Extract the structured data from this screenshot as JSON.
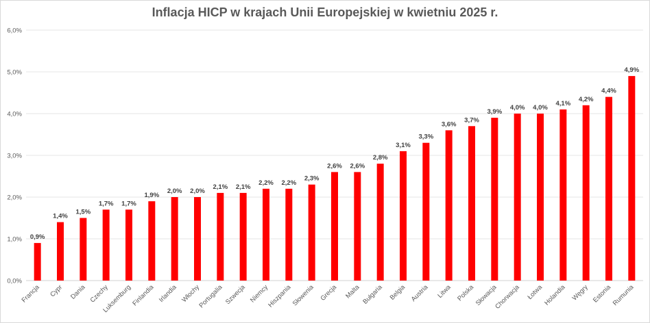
{
  "chart_data": {
    "type": "bar",
    "title": "Inflacja HICP w krajach Unii Europejskiej w kwietniu 2025 r.",
    "xlabel": "",
    "ylabel": "",
    "ylim": [
      0,
      6
    ],
    "y_ticks": [
      "0,0%",
      "1,0%",
      "2,0%",
      "3,0%",
      "4,0%",
      "5,0%",
      "6,0%"
    ],
    "y_tick_values": [
      0,
      1,
      2,
      3,
      4,
      5,
      6
    ],
    "grid": true,
    "legend": "none",
    "bar_color": "#ff0000",
    "categories": [
      "Francja",
      "Cypr",
      "Dania",
      "Czechy",
      "Luksemburg",
      "Finlandia",
      "Irlandia",
      "Włochy",
      "Portugalia",
      "Szwecja",
      "Niemcy",
      "Hiszpania",
      "Słowenia",
      "Grecja",
      "Malta",
      "Bułgaria",
      "Belgia",
      "Austria",
      "Litwa",
      "Polska",
      "Słowacja",
      "Chorwacja",
      "Łotwa",
      "Holandia",
      "Węgry",
      "Estonia",
      "Rumunia"
    ],
    "values": [
      0.9,
      1.4,
      1.5,
      1.7,
      1.7,
      1.9,
      2.0,
      2.0,
      2.1,
      2.1,
      2.2,
      2.2,
      2.3,
      2.6,
      2.6,
      2.8,
      3.1,
      3.3,
      3.6,
      3.7,
      3.9,
      4.0,
      4.0,
      4.1,
      4.2,
      4.4,
      4.9
    ],
    "data_labels": [
      "0,9%",
      "1,4%",
      "1,5%",
      "1,7%",
      "1,7%",
      "1,9%",
      "2,0%",
      "2,0%",
      "2,1%",
      "2,1%",
      "2,2%",
      "2,2%",
      "2,3%",
      "2,6%",
      "2,6%",
      "2,8%",
      "3,1%",
      "3,3%",
      "3,6%",
      "3,7%",
      "3,9%",
      "4,0%",
      "4,0%",
      "4,1%",
      "4,2%",
      "4,4%",
      "4,9%"
    ]
  }
}
